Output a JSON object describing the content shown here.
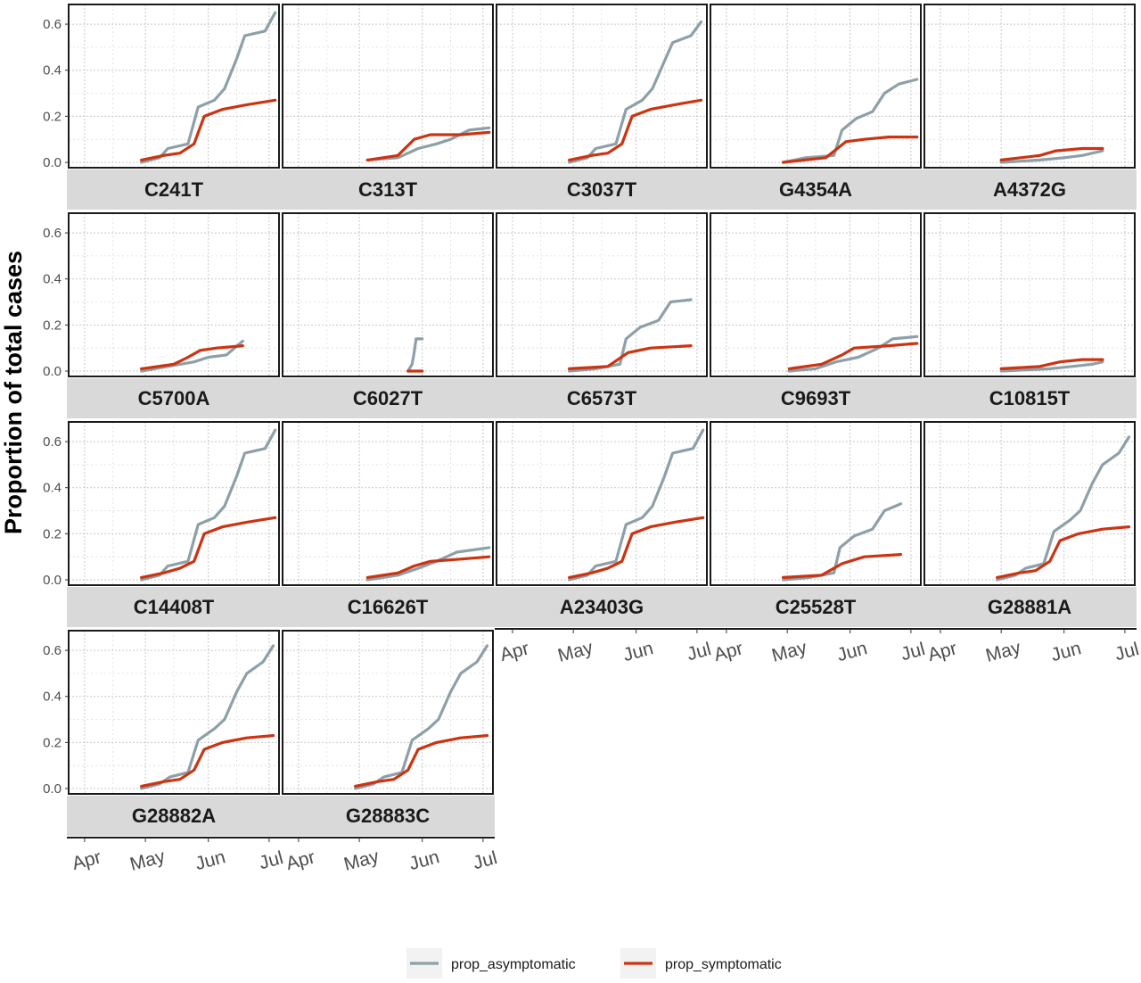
{
  "chart_data": {
    "type": "line",
    "facet_layout": "5 columns x 4 rows, shared y axis, x axis labels under bottom panel of each column",
    "ylabel": "Proportion of total cases",
    "xlabel": "",
    "y_ticks": [
      "0.0",
      "0.2",
      "0.4",
      "0.6"
    ],
    "ylim": [
      0,
      0.67
    ],
    "x_ticks": [
      "Apr",
      "May",
      "Jun",
      "Jul"
    ],
    "x_tick_dates": [
      "2020-04-01",
      "2020-05-01",
      "2020-06-01",
      "2020-07-01"
    ],
    "xlim": [
      "2020-03-25",
      "2020-07-05"
    ],
    "grid": "dotted major and minor gridlines",
    "legend": {
      "position": "bottom",
      "entries": [
        {
          "name": "prop_asymptomatic",
          "color": "#8da0a8"
        },
        {
          "name": "prop_symptomatic",
          "color": "#cc3311"
        }
      ]
    },
    "colors": {
      "asymptomatic": "#8da0a8",
      "symptomatic": "#cc3311",
      "strip": "#d9d9d9"
    },
    "panels": [
      {
        "label": "C241T",
        "asymptomatic": [
          [
            "2020-04-29",
            0
          ],
          [
            "2020-05-08",
            0.02
          ],
          [
            "2020-05-12",
            0.06
          ],
          [
            "2020-05-22",
            0.08
          ],
          [
            "2020-05-27",
            0.24
          ],
          [
            "2020-06-04",
            0.27
          ],
          [
            "2020-06-09",
            0.32
          ],
          [
            "2020-06-15",
            0.45
          ],
          [
            "2020-06-19",
            0.55
          ],
          [
            "2020-06-29",
            0.57
          ],
          [
            "2020-07-04",
            0.65
          ]
        ],
        "symptomatic": [
          [
            "2020-04-29",
            0.01
          ],
          [
            "2020-05-10",
            0.03
          ],
          [
            "2020-05-18",
            0.04
          ],
          [
            "2020-05-25",
            0.08
          ],
          [
            "2020-05-30",
            0.2
          ],
          [
            "2020-06-08",
            0.23
          ],
          [
            "2020-06-20",
            0.25
          ],
          [
            "2020-07-04",
            0.27
          ]
        ]
      },
      {
        "label": "C313T",
        "asymptomatic": [
          [
            "2020-05-05",
            0.01
          ],
          [
            "2020-05-20",
            0.02
          ],
          [
            "2020-05-30",
            0.06
          ],
          [
            "2020-06-08",
            0.08
          ],
          [
            "2020-06-15",
            0.1
          ],
          [
            "2020-06-24",
            0.14
          ],
          [
            "2020-07-04",
            0.15
          ]
        ],
        "symptomatic": [
          [
            "2020-05-05",
            0.01
          ],
          [
            "2020-05-20",
            0.03
          ],
          [
            "2020-05-28",
            0.1
          ],
          [
            "2020-06-05",
            0.12
          ],
          [
            "2020-06-20",
            0.12
          ],
          [
            "2020-07-04",
            0.13
          ]
        ]
      },
      {
        "label": "C3037T",
        "asymptomatic": [
          [
            "2020-04-29",
            0
          ],
          [
            "2020-05-08",
            0.02
          ],
          [
            "2020-05-12",
            0.06
          ],
          [
            "2020-05-22",
            0.08
          ],
          [
            "2020-05-27",
            0.23
          ],
          [
            "2020-06-04",
            0.27
          ],
          [
            "2020-06-09",
            0.32
          ],
          [
            "2020-06-15",
            0.44
          ],
          [
            "2020-06-19",
            0.52
          ],
          [
            "2020-06-28",
            0.55
          ],
          [
            "2020-07-03",
            0.61
          ]
        ],
        "symptomatic": [
          [
            "2020-04-29",
            0.01
          ],
          [
            "2020-05-10",
            0.03
          ],
          [
            "2020-05-18",
            0.04
          ],
          [
            "2020-05-25",
            0.08
          ],
          [
            "2020-05-30",
            0.2
          ],
          [
            "2020-06-08",
            0.23
          ],
          [
            "2020-06-20",
            0.25
          ],
          [
            "2020-07-03",
            0.27
          ]
        ]
      },
      {
        "label": "G4354A",
        "asymptomatic": [
          [
            "2020-04-29",
            0
          ],
          [
            "2020-05-10",
            0.02
          ],
          [
            "2020-05-24",
            0.03
          ],
          [
            "2020-05-28",
            0.14
          ],
          [
            "2020-06-04",
            0.19
          ],
          [
            "2020-06-12",
            0.22
          ],
          [
            "2020-06-18",
            0.3
          ],
          [
            "2020-06-25",
            0.34
          ],
          [
            "2020-07-04",
            0.36
          ]
        ],
        "symptomatic": [
          [
            "2020-04-29",
            0
          ],
          [
            "2020-05-20",
            0.02
          ],
          [
            "2020-05-30",
            0.09
          ],
          [
            "2020-06-08",
            0.1
          ],
          [
            "2020-06-20",
            0.11
          ],
          [
            "2020-07-04",
            0.11
          ]
        ]
      },
      {
        "label": "A4372G",
        "asymptomatic": [
          [
            "2020-05-01",
            0
          ],
          [
            "2020-05-20",
            0.01
          ],
          [
            "2020-06-01",
            0.02
          ],
          [
            "2020-06-10",
            0.03
          ],
          [
            "2020-06-20",
            0.05
          ]
        ],
        "symptomatic": [
          [
            "2020-05-01",
            0.01
          ],
          [
            "2020-05-20",
            0.03
          ],
          [
            "2020-05-28",
            0.05
          ],
          [
            "2020-06-10",
            0.06
          ],
          [
            "2020-06-20",
            0.06
          ]
        ]
      },
      {
        "label": "C5700A",
        "asymptomatic": [
          [
            "2020-04-29",
            0
          ],
          [
            "2020-05-12",
            0.02
          ],
          [
            "2020-05-25",
            0.04
          ],
          [
            "2020-06-01",
            0.06
          ],
          [
            "2020-06-10",
            0.07
          ],
          [
            "2020-06-18",
            0.13
          ]
        ],
        "symptomatic": [
          [
            "2020-04-29",
            0.01
          ],
          [
            "2020-05-15",
            0.03
          ],
          [
            "2020-05-22",
            0.06
          ],
          [
            "2020-05-28",
            0.09
          ],
          [
            "2020-06-05",
            0.1
          ],
          [
            "2020-06-18",
            0.11
          ]
        ]
      },
      {
        "label": "C6027T",
        "asymptomatic": [
          [
            "2020-05-25",
            0
          ],
          [
            "2020-05-27",
            0.03
          ],
          [
            "2020-05-28",
            0.08
          ],
          [
            "2020-05-29",
            0.14
          ],
          [
            "2020-06-01",
            0.14
          ]
        ],
        "symptomatic": [
          [
            "2020-05-25",
            0
          ],
          [
            "2020-06-01",
            0
          ]
        ]
      },
      {
        "label": "C6573T",
        "asymptomatic": [
          [
            "2020-04-29",
            0
          ],
          [
            "2020-05-12",
            0.01
          ],
          [
            "2020-05-24",
            0.03
          ],
          [
            "2020-05-27",
            0.14
          ],
          [
            "2020-06-03",
            0.19
          ],
          [
            "2020-06-12",
            0.22
          ],
          [
            "2020-06-18",
            0.3
          ],
          [
            "2020-06-28",
            0.31
          ]
        ],
        "symptomatic": [
          [
            "2020-04-29",
            0.01
          ],
          [
            "2020-05-18",
            0.02
          ],
          [
            "2020-05-28",
            0.08
          ],
          [
            "2020-06-08",
            0.1
          ],
          [
            "2020-06-28",
            0.11
          ]
        ]
      },
      {
        "label": "C9693T",
        "asymptomatic": [
          [
            "2020-05-02",
            0
          ],
          [
            "2020-05-15",
            0.01
          ],
          [
            "2020-05-25",
            0.04
          ],
          [
            "2020-06-05",
            0.06
          ],
          [
            "2020-06-15",
            0.1
          ],
          [
            "2020-06-22",
            0.14
          ],
          [
            "2020-07-04",
            0.15
          ]
        ],
        "symptomatic": [
          [
            "2020-05-02",
            0.01
          ],
          [
            "2020-05-18",
            0.03
          ],
          [
            "2020-05-28",
            0.07
          ],
          [
            "2020-06-03",
            0.1
          ],
          [
            "2020-06-20",
            0.11
          ],
          [
            "2020-07-04",
            0.12
          ]
        ]
      },
      {
        "label": "C10815T",
        "asymptomatic": [
          [
            "2020-05-01",
            0
          ],
          [
            "2020-05-25",
            0.01
          ],
          [
            "2020-06-05",
            0.02
          ],
          [
            "2020-06-15",
            0.03
          ],
          [
            "2020-06-20",
            0.04
          ]
        ],
        "symptomatic": [
          [
            "2020-05-01",
            0.01
          ],
          [
            "2020-05-20",
            0.02
          ],
          [
            "2020-05-30",
            0.04
          ],
          [
            "2020-06-10",
            0.05
          ],
          [
            "2020-06-20",
            0.05
          ]
        ]
      },
      {
        "label": "C14408T",
        "asymptomatic": [
          [
            "2020-04-29",
            0
          ],
          [
            "2020-05-08",
            0.02
          ],
          [
            "2020-05-12",
            0.06
          ],
          [
            "2020-05-22",
            0.08
          ],
          [
            "2020-05-27",
            0.24
          ],
          [
            "2020-06-04",
            0.27
          ],
          [
            "2020-06-09",
            0.32
          ],
          [
            "2020-06-15",
            0.45
          ],
          [
            "2020-06-19",
            0.55
          ],
          [
            "2020-06-29",
            0.57
          ],
          [
            "2020-07-04",
            0.65
          ]
        ],
        "symptomatic": [
          [
            "2020-04-29",
            0.01
          ],
          [
            "2020-05-10",
            0.03
          ],
          [
            "2020-05-18",
            0.05
          ],
          [
            "2020-05-25",
            0.08
          ],
          [
            "2020-05-30",
            0.2
          ],
          [
            "2020-06-08",
            0.23
          ],
          [
            "2020-06-20",
            0.25
          ],
          [
            "2020-07-04",
            0.27
          ]
        ]
      },
      {
        "label": "C16626T",
        "asymptomatic": [
          [
            "2020-05-05",
            0
          ],
          [
            "2020-05-20",
            0.02
          ],
          [
            "2020-05-30",
            0.05
          ],
          [
            "2020-06-08",
            0.08
          ],
          [
            "2020-06-18",
            0.12
          ],
          [
            "2020-07-04",
            0.14
          ]
        ],
        "symptomatic": [
          [
            "2020-05-05",
            0.01
          ],
          [
            "2020-05-20",
            0.03
          ],
          [
            "2020-05-28",
            0.06
          ],
          [
            "2020-06-05",
            0.08
          ],
          [
            "2020-06-20",
            0.09
          ],
          [
            "2020-07-04",
            0.1
          ]
        ]
      },
      {
        "label": "A23403G",
        "asymptomatic": [
          [
            "2020-04-29",
            0
          ],
          [
            "2020-05-08",
            0.02
          ],
          [
            "2020-05-12",
            0.06
          ],
          [
            "2020-05-22",
            0.08
          ],
          [
            "2020-05-27",
            0.24
          ],
          [
            "2020-06-04",
            0.27
          ],
          [
            "2020-06-09",
            0.32
          ],
          [
            "2020-06-15",
            0.45
          ],
          [
            "2020-06-19",
            0.55
          ],
          [
            "2020-06-29",
            0.57
          ],
          [
            "2020-07-04",
            0.65
          ]
        ],
        "symptomatic": [
          [
            "2020-04-29",
            0.01
          ],
          [
            "2020-05-10",
            0.03
          ],
          [
            "2020-05-18",
            0.05
          ],
          [
            "2020-05-25",
            0.08
          ],
          [
            "2020-05-30",
            0.2
          ],
          [
            "2020-06-08",
            0.23
          ],
          [
            "2020-06-20",
            0.25
          ],
          [
            "2020-07-04",
            0.27
          ]
        ]
      },
      {
        "label": "C25528T",
        "asymptomatic": [
          [
            "2020-04-29",
            0
          ],
          [
            "2020-05-12",
            0.01
          ],
          [
            "2020-05-24",
            0.03
          ],
          [
            "2020-05-27",
            0.14
          ],
          [
            "2020-06-03",
            0.19
          ],
          [
            "2020-06-12",
            0.22
          ],
          [
            "2020-06-18",
            0.3
          ],
          [
            "2020-06-26",
            0.33
          ]
        ],
        "symptomatic": [
          [
            "2020-04-29",
            0.01
          ],
          [
            "2020-05-18",
            0.02
          ],
          [
            "2020-05-28",
            0.07
          ],
          [
            "2020-06-08",
            0.1
          ],
          [
            "2020-06-26",
            0.11
          ]
        ]
      },
      {
        "label": "G28881A",
        "asymptomatic": [
          [
            "2020-04-29",
            0
          ],
          [
            "2020-05-08",
            0.02
          ],
          [
            "2020-05-13",
            0.05
          ],
          [
            "2020-05-22",
            0.07
          ],
          [
            "2020-05-27",
            0.21
          ],
          [
            "2020-06-04",
            0.26
          ],
          [
            "2020-06-09",
            0.3
          ],
          [
            "2020-06-15",
            0.42
          ],
          [
            "2020-06-20",
            0.5
          ],
          [
            "2020-06-28",
            0.55
          ],
          [
            "2020-07-03",
            0.62
          ]
        ],
        "symptomatic": [
          [
            "2020-04-29",
            0.01
          ],
          [
            "2020-05-10",
            0.03
          ],
          [
            "2020-05-18",
            0.04
          ],
          [
            "2020-05-25",
            0.08
          ],
          [
            "2020-05-30",
            0.17
          ],
          [
            "2020-06-08",
            0.2
          ],
          [
            "2020-06-20",
            0.22
          ],
          [
            "2020-07-03",
            0.23
          ]
        ]
      },
      {
        "label": "G28882A",
        "asymptomatic": [
          [
            "2020-04-29",
            0
          ],
          [
            "2020-05-08",
            0.02
          ],
          [
            "2020-05-13",
            0.05
          ],
          [
            "2020-05-22",
            0.07
          ],
          [
            "2020-05-27",
            0.21
          ],
          [
            "2020-06-04",
            0.26
          ],
          [
            "2020-06-09",
            0.3
          ],
          [
            "2020-06-15",
            0.42
          ],
          [
            "2020-06-20",
            0.5
          ],
          [
            "2020-06-28",
            0.55
          ],
          [
            "2020-07-03",
            0.62
          ]
        ],
        "symptomatic": [
          [
            "2020-04-29",
            0.01
          ],
          [
            "2020-05-10",
            0.03
          ],
          [
            "2020-05-18",
            0.04
          ],
          [
            "2020-05-25",
            0.08
          ],
          [
            "2020-05-30",
            0.17
          ],
          [
            "2020-06-08",
            0.2
          ],
          [
            "2020-06-20",
            0.22
          ],
          [
            "2020-07-03",
            0.23
          ]
        ]
      },
      {
        "label": "G28883C",
        "asymptomatic": [
          [
            "2020-04-29",
            0
          ],
          [
            "2020-05-08",
            0.02
          ],
          [
            "2020-05-13",
            0.05
          ],
          [
            "2020-05-22",
            0.07
          ],
          [
            "2020-05-27",
            0.21
          ],
          [
            "2020-06-04",
            0.26
          ],
          [
            "2020-06-09",
            0.3
          ],
          [
            "2020-06-15",
            0.42
          ],
          [
            "2020-06-20",
            0.5
          ],
          [
            "2020-06-28",
            0.55
          ],
          [
            "2020-07-03",
            0.62
          ]
        ],
        "symptomatic": [
          [
            "2020-04-29",
            0.01
          ],
          [
            "2020-05-10",
            0.03
          ],
          [
            "2020-05-18",
            0.04
          ],
          [
            "2020-05-25",
            0.08
          ],
          [
            "2020-05-30",
            0.17
          ],
          [
            "2020-06-08",
            0.2
          ],
          [
            "2020-06-20",
            0.22
          ],
          [
            "2020-07-03",
            0.23
          ]
        ]
      }
    ]
  }
}
